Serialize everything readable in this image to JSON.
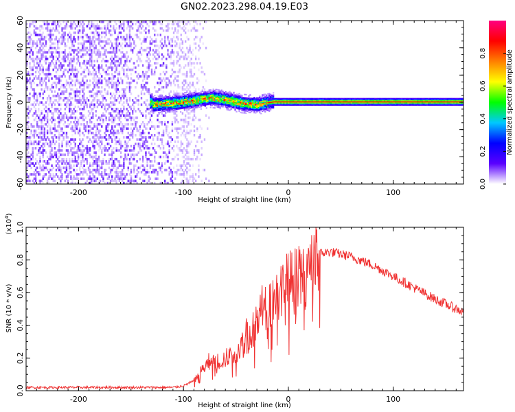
{
  "title": "GN02.2023.298.04.19.E03",
  "chart_data": [
    {
      "type": "heatmap",
      "xlabel": "Height of straight line (km)",
      "ylabel": "Frequency (Hz)",
      "xlim": [
        -250,
        167
      ],
      "ylim": [
        -60,
        60
      ],
      "x_ticks": [
        "-200",
        "-100",
        "0",
        "100"
      ],
      "y_ticks": [
        "-60",
        "-40",
        "-20",
        "0",
        "20",
        "40",
        "60"
      ],
      "colorbar": {
        "label": "Normalized spectral amplitude",
        "range": [
          0,
          1
        ],
        "ticks": [
          "0.0",
          "0.2",
          "0.4",
          "0.6",
          "0.8"
        ],
        "colors": [
          "#ffffff",
          "#5a00ff",
          "#0000ff",
          "#00c8ff",
          "#00ff00",
          "#ffff00",
          "#ff8000",
          "#ff0000",
          "#ff0080"
        ]
      },
      "regions": [
        {
          "x": [
            -250,
            -100
          ],
          "freq_range": [
            -60,
            60
          ],
          "amplitude": 0.05,
          "description_hidden": true
        },
        {
          "x": [
            -130,
            -20
          ],
          "freq_center": 0,
          "freq_halfwidth": 5,
          "amplitude": 0.5
        },
        {
          "x": [
            -20,
            167
          ],
          "freq_center": 0,
          "freq_halfwidth": 2,
          "amplitude": 0.9
        }
      ],
      "ridge": [
        {
          "x": -130,
          "f": -2
        },
        {
          "x": -110,
          "f": -1
        },
        {
          "x": -90,
          "f": 1
        },
        {
          "x": -75,
          "f": 3
        },
        {
          "x": -60,
          "f": 1.5
        },
        {
          "x": -45,
          "f": -1
        },
        {
          "x": -30,
          "f": -2
        },
        {
          "x": -15,
          "f": 0
        },
        {
          "x": 0,
          "f": 0
        },
        {
          "x": 167,
          "f": 0
        }
      ]
    },
    {
      "type": "line",
      "xlabel": "Height of straight line (km)",
      "ylabel": "SNR (10 * v/v)",
      "y_multiplier": "(x10",
      "y_multiplier_exp": "4",
      "y_multiplier_close": ")",
      "xlim": [
        -250,
        167
      ],
      "ylim": [
        0,
        1.0
      ],
      "x_ticks": [
        "-200",
        "-100",
        "0",
        "100"
      ],
      "y_ticks": [
        "0.0",
        "0.2",
        "0.4",
        "0.6",
        "0.8",
        "1.0"
      ],
      "series": [
        {
          "color": "#f03232",
          "envelope": [
            {
              "x": -250,
              "y": 0.02
            },
            {
              "x": -110,
              "y": 0.02
            },
            {
              "x": -100,
              "y": 0.03
            },
            {
              "x": -90,
              "y": 0.06
            },
            {
              "x": -80,
              "y": 0.15
            },
            {
              "x": -70,
              "y": 0.18
            },
            {
              "x": -60,
              "y": 0.2
            },
            {
              "x": -50,
              "y": 0.25
            },
            {
              "x": -40,
              "y": 0.32
            },
            {
              "x": -30,
              "y": 0.42
            },
            {
              "x": -20,
              "y": 0.55
            },
            {
              "x": -10,
              "y": 0.6
            },
            {
              "x": 0,
              "y": 0.68
            },
            {
              "x": 10,
              "y": 0.7
            },
            {
              "x": 20,
              "y": 0.76
            },
            {
              "x": 30,
              "y": 0.84
            },
            {
              "x": 40,
              "y": 0.85
            },
            {
              "x": 60,
              "y": 0.82
            },
            {
              "x": 80,
              "y": 0.77
            },
            {
              "x": 100,
              "y": 0.7
            },
            {
              "x": 120,
              "y": 0.63
            },
            {
              "x": 140,
              "y": 0.56
            },
            {
              "x": 167,
              "y": 0.48
            }
          ],
          "peaks": [
            {
              "x": -75,
              "y": 0.33
            },
            {
              "x": -55,
              "y": 0.3
            },
            {
              "x": -40,
              "y": 0.47
            },
            {
              "x": -25,
              "y": 0.68
            },
            {
              "x": -5,
              "y": 0.84
            },
            {
              "x": 10,
              "y": 1.0
            },
            {
              "x": 19,
              "y": 0.98
            }
          ]
        }
      ]
    }
  ]
}
